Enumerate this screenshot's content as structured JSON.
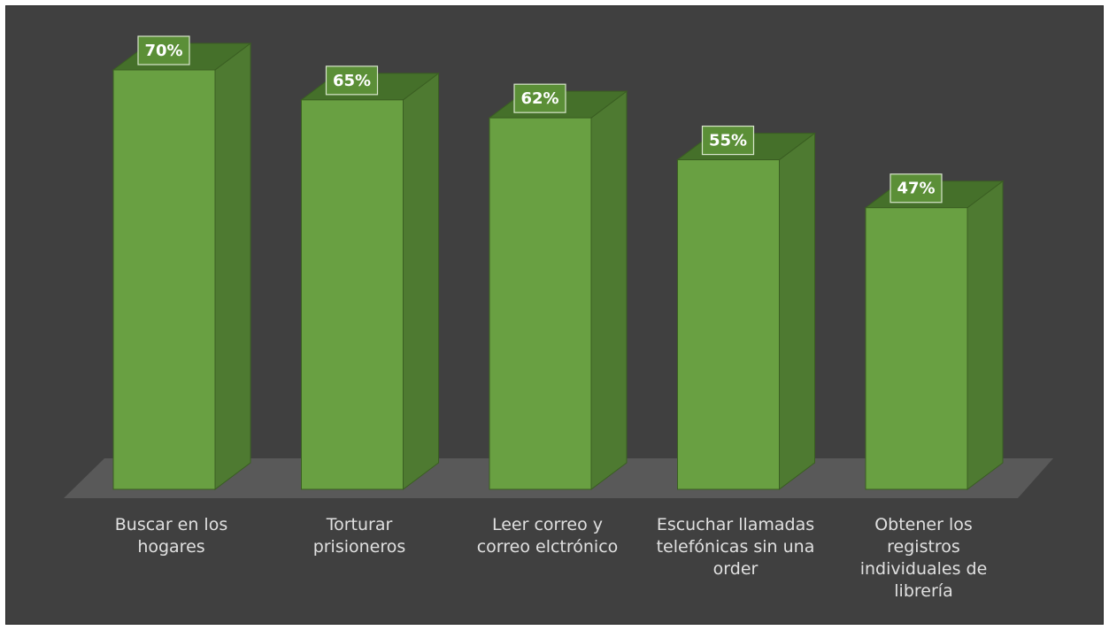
{
  "chart_data": {
    "type": "bar",
    "style": "3d-column",
    "categories": [
      "Buscar en los\nhogares",
      "Torturar\nprisioneros",
      "Leer correo y\ncorreo elctrónico",
      "Escuchar llamadas\ntelefónicas sin una\norder",
      "Obtener los\nregistros\nindividuales de\nlibrería"
    ],
    "values": [
      70,
      65,
      62,
      55,
      47
    ],
    "data_labels": [
      "70%",
      "65%",
      "62%",
      "55%",
      "47%"
    ],
    "value_unit": "%",
    "title": "",
    "xlabel": "",
    "ylabel": "",
    "ylim": [
      0,
      80
    ],
    "grid": false,
    "legend": "none",
    "colors": {
      "background": "#404040",
      "floor": "#595959",
      "bar_front": "#69a042",
      "bar_side": "#4e7a31",
      "bar_top": "#45702a",
      "bar_edge": "#3a5e22",
      "label_box_fill": "#5b8f37",
      "label_box_stroke": "#d8e6cc",
      "text": "#e0e0e0"
    }
  }
}
